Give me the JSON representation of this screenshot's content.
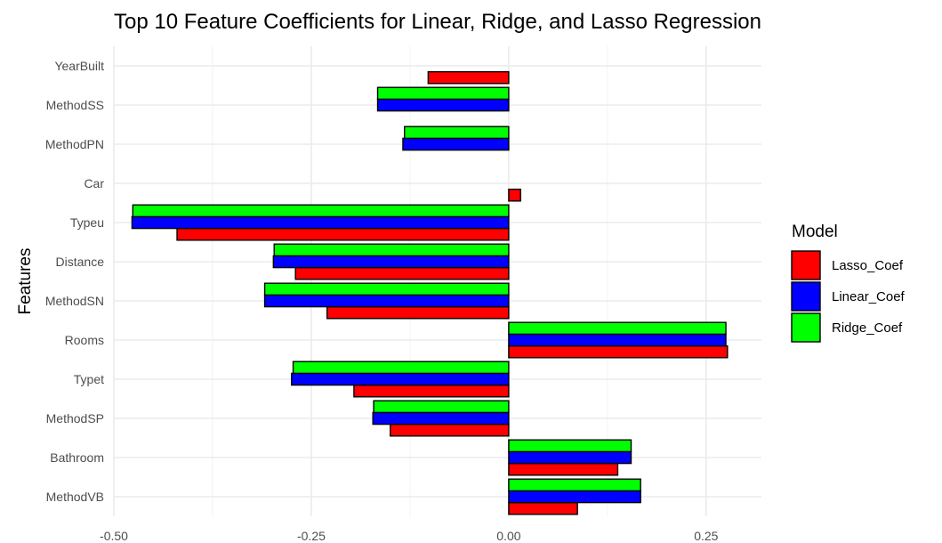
{
  "chart_data": {
    "type": "bar",
    "orientation": "horizontal",
    "title": "Top 10 Feature Coefficients for Linear, Ridge, and Lasso Regression",
    "xlabel": "",
    "ylabel": "Features",
    "xlim": [
      -0.5,
      0.32
    ],
    "x_ticks": [
      "-0.50",
      "-0.25",
      "0.00",
      "0.25"
    ],
    "x_tick_values": [
      -0.5,
      -0.25,
      0,
      0.25
    ],
    "grid": true,
    "categories": [
      "YearBuilt",
      "MethodSS",
      "MethodPN",
      "Car",
      "Typeu",
      "Distance",
      "MethodSN",
      "Rooms",
      "Typet",
      "MethodSP",
      "Bathroom",
      "MethodVB"
    ],
    "series": [
      {
        "name": "Lasso_Coef",
        "color": "#ff0000",
        "values": [
          -0.102,
          null,
          null,
          0.015,
          -0.42,
          -0.27,
          -0.23,
          0.277,
          -0.196,
          -0.15,
          0.138,
          0.087
        ]
      },
      {
        "name": "Linear_Coef",
        "color": "#0000ff",
        "values": [
          null,
          -0.166,
          -0.134,
          null,
          -0.477,
          -0.298,
          -0.309,
          0.275,
          -0.275,
          -0.172,
          0.155,
          0.167
        ]
      },
      {
        "name": "Ridge_Coef",
        "color": "#00ff00",
        "values": [
          null,
          -0.166,
          -0.132,
          null,
          -0.476,
          -0.297,
          -0.309,
          0.275,
          -0.273,
          -0.171,
          0.155,
          0.167
        ]
      }
    ],
    "legend": {
      "title": "Model",
      "position": "right"
    }
  }
}
